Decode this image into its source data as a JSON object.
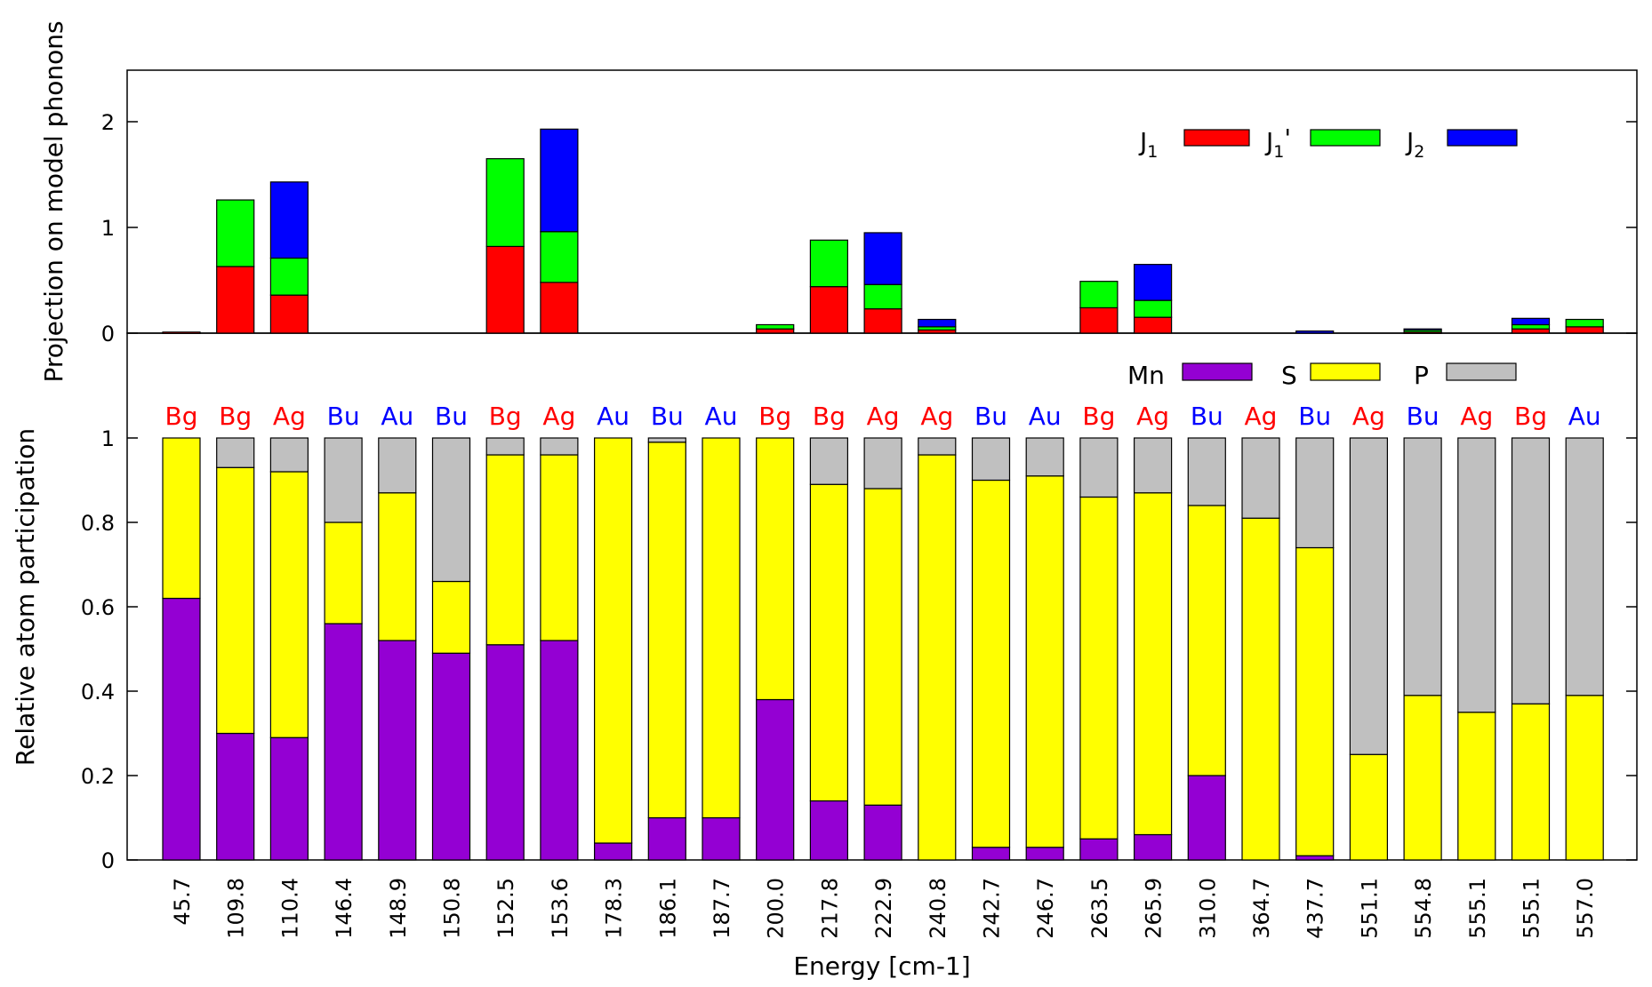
{
  "colors": {
    "J1": "#ff0000",
    "J1p": "#00ff00",
    "J2": "#0000ff",
    "Mn": "#9400d3",
    "S": "#ffff00",
    "P": "#c0c0c0",
    "sym_gerade": "#ff0000",
    "sym_ungerade": "#0000ff"
  },
  "chart_data": [
    {
      "type": "bar",
      "stacked": true,
      "title": "",
      "ylabel": "Projection on model phonons",
      "ylim": [
        0,
        2.5
      ],
      "yticks": [
        "0",
        "1",
        "2"
      ],
      "legend": {
        "placement": "top-right",
        "entries": [
          {
            "key": "J1",
            "base": "J",
            "sub": "1",
            "suffix": ""
          },
          {
            "key": "J1p",
            "base": "J",
            "sub": "1",
            "suffix": "'"
          },
          {
            "key": "J2",
            "base": "J",
            "sub": "2",
            "suffix": ""
          }
        ]
      },
      "groups": [
        {
          "idx": 0,
          "series": [
            {
              "name": "J1",
              "values": [
                0.01
              ]
            }
          ]
        },
        {
          "idx": 1,
          "series": [
            {
              "name": "J1",
              "values": [
                0.63
              ]
            },
            {
              "name": "J1p",
              "values": [
                0.63
              ]
            }
          ]
        },
        {
          "idx": 2,
          "series": [
            {
              "name": "J1",
              "values": [
                0.36
              ]
            },
            {
              "name": "J1p",
              "values": [
                0.35
              ]
            },
            {
              "name": "J2",
              "values": [
                0.72
              ]
            }
          ]
        },
        {
          "idx": 6,
          "series": [
            {
              "name": "J1",
              "values": [
                0.82
              ]
            },
            {
              "name": "J1p",
              "values": [
                0.83
              ]
            }
          ]
        },
        {
          "idx": 7,
          "series": [
            {
              "name": "J1",
              "values": [
                0.48
              ]
            },
            {
              "name": "J1p",
              "values": [
                0.48
              ]
            },
            {
              "name": "J2",
              "values": [
                0.97
              ]
            }
          ]
        },
        {
          "idx": 11,
          "series": [
            {
              "name": "J1",
              "values": [
                0.04
              ]
            },
            {
              "name": "J1p",
              "values": [
                0.04
              ]
            }
          ]
        },
        {
          "idx": 12,
          "series": [
            {
              "name": "J1",
              "values": [
                0.44
              ]
            },
            {
              "name": "J1p",
              "values": [
                0.44
              ]
            }
          ]
        },
        {
          "idx": 13,
          "series": [
            {
              "name": "J1",
              "values": [
                0.23
              ]
            },
            {
              "name": "J1p",
              "values": [
                0.23
              ]
            },
            {
              "name": "J2",
              "values": [
                0.49
              ]
            }
          ]
        },
        {
          "idx": 14,
          "series": [
            {
              "name": "J1",
              "values": [
                0.03
              ]
            },
            {
              "name": "J1p",
              "values": [
                0.03
              ]
            },
            {
              "name": "J2",
              "values": [
                0.07
              ]
            }
          ]
        },
        {
          "idx": 17,
          "series": [
            {
              "name": "J1",
              "values": [
                0.24
              ]
            },
            {
              "name": "J1p",
              "values": [
                0.25
              ]
            }
          ]
        },
        {
          "idx": 18,
          "series": [
            {
              "name": "J1",
              "values": [
                0.15
              ]
            },
            {
              "name": "J1p",
              "values": [
                0.16
              ]
            },
            {
              "name": "J2",
              "values": [
                0.34
              ]
            }
          ]
        },
        {
          "idx": 21,
          "series": [
            {
              "name": "J2",
              "values": [
                0.02
              ]
            }
          ]
        },
        {
          "idx": 23,
          "series": [
            {
              "name": "J1",
              "values": [
                0.01
              ]
            },
            {
              "name": "J1p",
              "values": [
                0.02
              ]
            },
            {
              "name": "J2",
              "values": [
                0.01
              ]
            }
          ]
        },
        {
          "idx": 25,
          "series": [
            {
              "name": "J1",
              "values": [
                0.04
              ]
            },
            {
              "name": "J1p",
              "values": [
                0.04
              ]
            },
            {
              "name": "J2",
              "values": [
                0.06
              ]
            }
          ]
        },
        {
          "idx": 26,
          "series": [
            {
              "name": "J1",
              "values": [
                0.06
              ]
            },
            {
              "name": "J1p",
              "values": [
                0.07
              ]
            }
          ]
        }
      ]
    },
    {
      "type": "bar",
      "stacked": true,
      "title": "",
      "xlabel": "Energy [cm-1]",
      "ylabel": "Relative atom participation",
      "ylim": [
        0,
        1.0
      ],
      "yticks": [
        "0",
        "0.2",
        "0.4",
        "0.6",
        "0.8",
        "1"
      ],
      "legend": {
        "placement": "top-right",
        "entries": [
          {
            "key": "Mn",
            "label": "Mn"
          },
          {
            "key": "S",
            "label": "S"
          },
          {
            "key": "P",
            "label": "P"
          }
        ]
      },
      "categories": [
        "45.7",
        "109.8",
        "110.4",
        "146.4",
        "148.9",
        "150.8",
        "152.5",
        "153.6",
        "178.3",
        "186.1",
        "187.7",
        "200.0",
        "217.8",
        "222.9",
        "240.8",
        "242.7",
        "246.7",
        "263.5",
        "265.9",
        "310.0",
        "364.7",
        "437.7",
        "551.1",
        "554.8",
        "555.1",
        "555.1",
        "557.0"
      ],
      "symmetry": [
        "Bg",
        "Bg",
        "Ag",
        "Bu",
        "Au",
        "Bu",
        "Bg",
        "Ag",
        "Au",
        "Bu",
        "Au",
        "Bg",
        "Bg",
        "Ag",
        "Ag",
        "Bu",
        "Au",
        "Bg",
        "Ag",
        "Bu",
        "Ag",
        "Bu",
        "Ag",
        "Bu",
        "Ag",
        "Bg",
        "Au"
      ],
      "series": [
        {
          "name": "Mn",
          "values": [
            0.62,
            0.3,
            0.29,
            0.56,
            0.52,
            0.49,
            0.51,
            0.52,
            0.04,
            0.1,
            0.1,
            0.38,
            0.14,
            0.13,
            0.0,
            0.03,
            0.03,
            0.05,
            0.06,
            0.2,
            0.0,
            0.01,
            0.0,
            0.0,
            0.0,
            0.0,
            0.0
          ]
        },
        {
          "name": "S",
          "values": [
            0.38,
            0.63,
            0.63,
            0.24,
            0.35,
            0.17,
            0.45,
            0.44,
            0.96,
            0.89,
            0.9,
            0.62,
            0.75,
            0.75,
            0.96,
            0.87,
            0.88,
            0.81,
            0.81,
            0.64,
            0.81,
            0.73,
            0.25,
            0.39,
            0.35,
            0.37,
            0.39
          ]
        },
        {
          "name": "P",
          "values": [
            0.0,
            0.07,
            0.08,
            0.2,
            0.13,
            0.34,
            0.04,
            0.04,
            0.0,
            0.01,
            0.0,
            0.0,
            0.11,
            0.12,
            0.04,
            0.1,
            0.09,
            0.14,
            0.13,
            0.16,
            0.19,
            0.26,
            0.75,
            0.61,
            0.65,
            0.63,
            0.61
          ]
        }
      ]
    }
  ]
}
